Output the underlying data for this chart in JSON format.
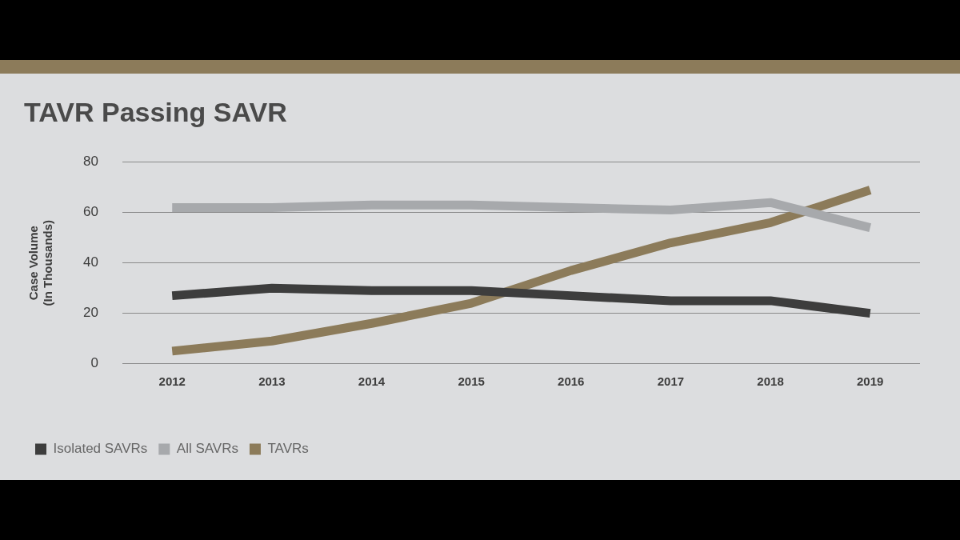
{
  "chart_data": {
    "type": "line",
    "title": "TAVR Passing SAVR",
    "ylabel": "Case Volume\n(In Thousands)",
    "categories": [
      "2012",
      "2013",
      "2014",
      "2015",
      "2016",
      "2017",
      "2018",
      "2019"
    ],
    "series": [
      {
        "name": "Isolated SAVRs",
        "color": "#3d3d3d",
        "values": [
          27,
          30,
          29,
          29,
          27,
          25,
          25,
          20
        ]
      },
      {
        "name": "All SAVRs",
        "color": "#a7a9ac",
        "values": [
          62,
          62,
          63,
          63,
          62,
          61,
          64,
          54
        ]
      },
      {
        "name": "TAVRs",
        "color": "#8c7b5a",
        "values": [
          5,
          9,
          16,
          24,
          37,
          48,
          56,
          69
        ]
      }
    ],
    "ylim": [
      0,
      80
    ],
    "yticks": [
      0,
      20,
      40,
      60,
      80
    ],
    "grid": "y",
    "legend": "bottom left",
    "marker": "none",
    "line_style": "solid"
  }
}
